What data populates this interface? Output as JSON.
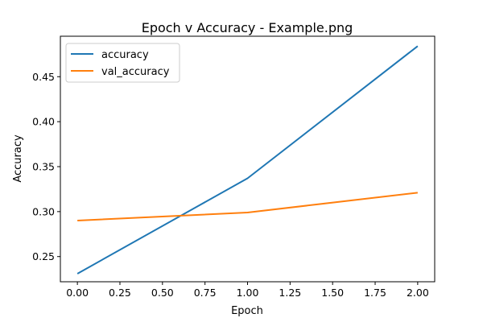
{
  "chart_data": {
    "type": "line",
    "title": "Epoch v Accuracy - Example.png",
    "xlabel": "Epoch",
    "ylabel": "Accuracy",
    "x": [
      0,
      1,
      2
    ],
    "xlim": [
      -0.1,
      2.1
    ],
    "ylim": [
      0.222,
      0.495
    ],
    "xticks": [
      "0.00",
      "0.25",
      "0.50",
      "0.75",
      "1.00",
      "1.25",
      "1.50",
      "1.75",
      "2.00"
    ],
    "yticks": [
      "0.25",
      "0.30",
      "0.35",
      "0.40",
      "0.45"
    ],
    "grid": false,
    "legend_position": "top-left",
    "series": [
      {
        "name": "accuracy",
        "color": "#1f77b4",
        "values": [
          0.231,
          0.337,
          0.484
        ]
      },
      {
        "name": "val_accuracy",
        "color": "#ff7f0e",
        "values": [
          0.29,
          0.299,
          0.321
        ]
      }
    ]
  }
}
